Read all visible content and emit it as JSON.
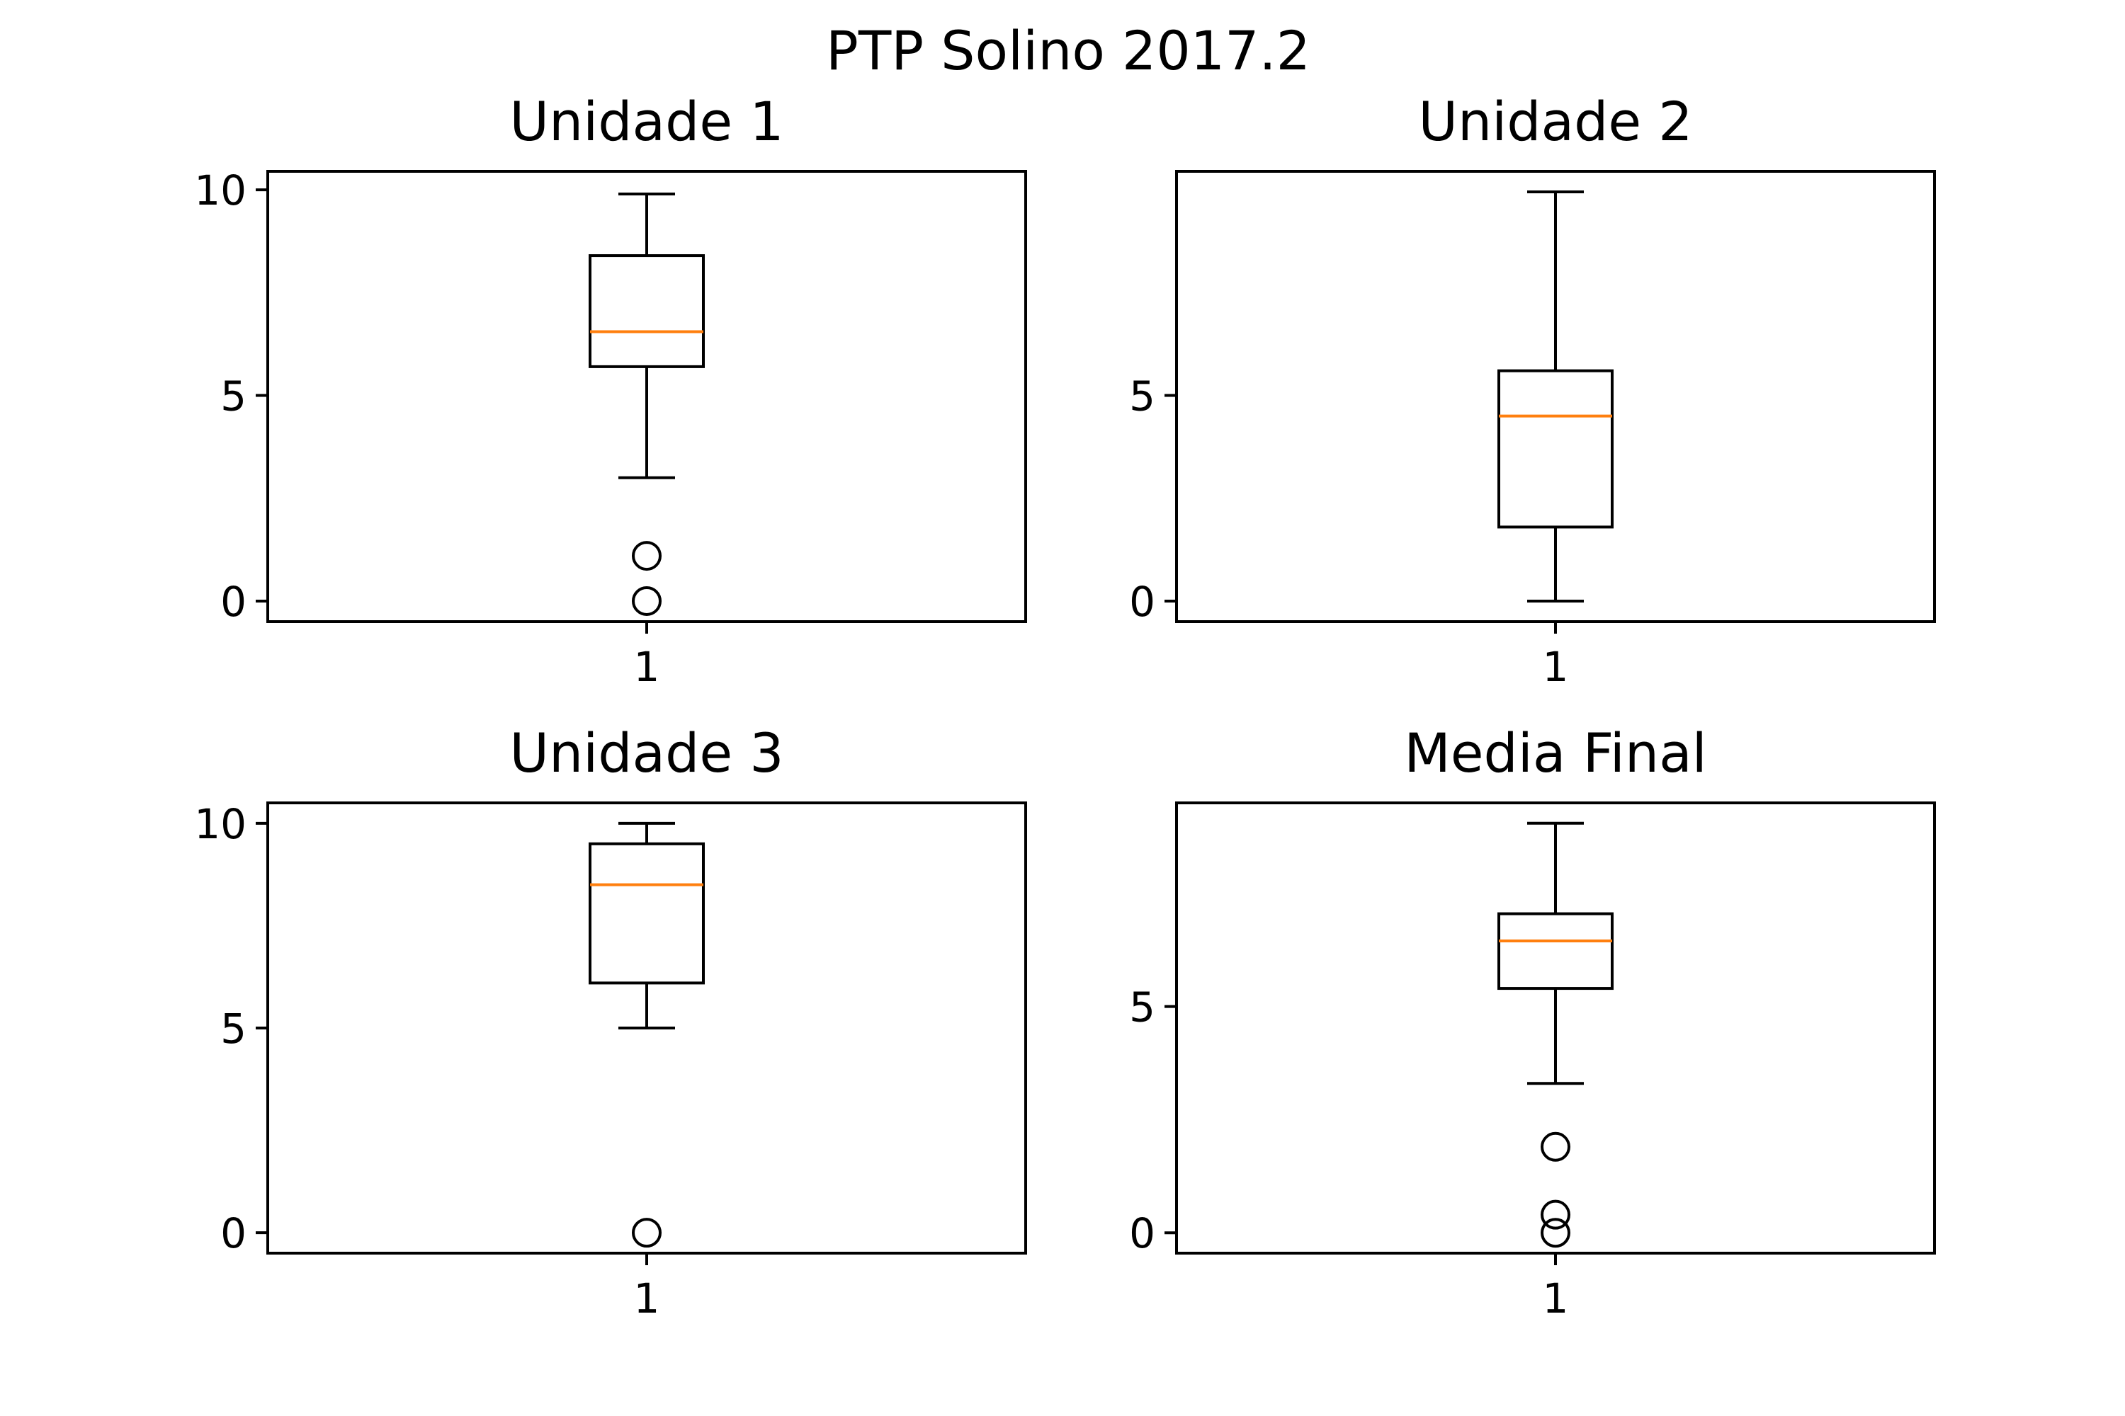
{
  "figure": {
    "title": "PTP Solino 2017.2"
  },
  "chart_data": [
    {
      "type": "box",
      "title": "Unidade 1",
      "categories": [
        "1"
      ],
      "ylim": [
        -0.5,
        10.45
      ],
      "yticks": [
        0,
        5,
        10
      ],
      "box": {
        "whisker_low": 3.0,
        "q1": 5.7,
        "median": 6.55,
        "q3": 8.4,
        "whisker_high": 9.9
      },
      "outliers": [
        1.1,
        0.0
      ],
      "colors": {
        "box": "#000000",
        "median": "#ff7f0e"
      }
    },
    {
      "type": "box",
      "title": "Unidade 2",
      "categories": [
        "1"
      ],
      "ylim": [
        -0.5,
        10.45
      ],
      "yticks": [
        0,
        5
      ],
      "box": {
        "whisker_low": 0.0,
        "q1": 1.8,
        "median": 4.5,
        "q3": 5.6,
        "whisker_high": 9.95
      },
      "outliers": [],
      "colors": {
        "box": "#000000",
        "median": "#ff7f0e"
      }
    },
    {
      "type": "box",
      "title": "Unidade 3",
      "categories": [
        "1"
      ],
      "ylim": [
        -0.5,
        10.5
      ],
      "yticks": [
        0,
        5,
        10
      ],
      "box": {
        "whisker_low": 5.0,
        "q1": 6.1,
        "median": 8.5,
        "q3": 9.5,
        "whisker_high": 10.0
      },
      "outliers": [
        0.0
      ],
      "colors": {
        "box": "#000000",
        "median": "#ff7f0e"
      }
    },
    {
      "type": "box",
      "title": "Media Final",
      "categories": [
        "1"
      ],
      "ylim": [
        -0.45,
        9.5
      ],
      "yticks": [
        0,
        5
      ],
      "box": {
        "whisker_low": 3.3,
        "q1": 5.4,
        "median": 6.45,
        "q3": 7.05,
        "whisker_high": 9.05
      },
      "outliers": [
        1.9,
        0.4,
        0.0
      ],
      "colors": {
        "box": "#000000",
        "median": "#ff7f0e"
      }
    }
  ]
}
